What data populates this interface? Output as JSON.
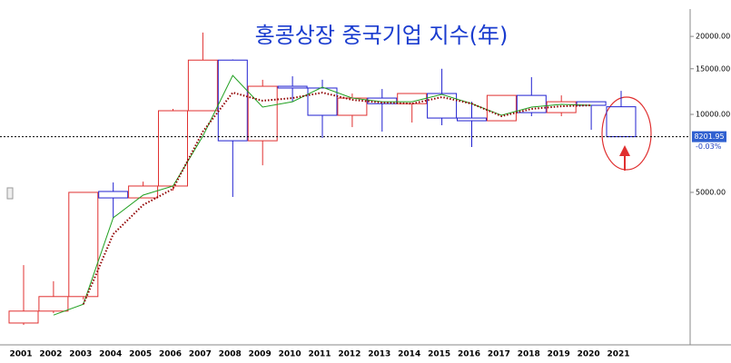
{
  "chart_data": {
    "type": "candlestick",
    "title": "홍콩상장 중국기업 지수(年)",
    "categories": [
      "2001",
      "2002",
      "2003",
      "2004",
      "2005",
      "2006",
      "2007",
      "2008",
      "2009",
      "2010",
      "2011",
      "2012",
      "2013",
      "2014",
      "2015",
      "2016",
      "2017",
      "2018",
      "2019",
      "2020",
      "2021"
    ],
    "open": [
      1565,
      1740,
      1980,
      5040,
      4760,
      5290,
      10330,
      16200,
      7910,
      12840,
      12640,
      9920,
      11560,
      11000,
      12040,
      9680,
      9450,
      11840,
      10160,
      11190,
      10700
    ],
    "high": [
      2620,
      2270,
      5000,
      5460,
      5500,
      10500,
      20700,
      16300,
      13600,
      14030,
      13600,
      12040,
      12530,
      12040,
      15000,
      11190,
      11840,
      13920,
      11840,
      11190,
      12330
    ],
    "low": [
      1540,
      1710,
      1930,
      3990,
      4760,
      5080,
      10330,
      4800,
      6360,
      11190,
      8110,
      8930,
      8580,
      9300,
      9080,
      7480,
      9450,
      9840,
      9840,
      8720,
      8201.95
    ],
    "close": [
      1740,
      1980,
      5000,
      4760,
      5290,
      10330,
      16200,
      7910,
      12840,
      12640,
      9920,
      11560,
      11000,
      12040,
      9680,
      9450,
      11840,
      10160,
      11190,
      10840,
      8201.95
    ],
    "up_color": "#e03030",
    "down_color": "#2020d0",
    "lines": [
      {
        "color": "#20a020",
        "style": "solid",
        "values": [
          null,
          1680,
          1850,
          3990,
          4880,
          5290,
          8240,
          14140,
          10670,
          11190,
          12740,
          11560,
          11190,
          11190,
          11940,
          11000,
          9920,
          10670,
          10930,
          10840,
          null
        ]
      },
      {
        "color": "#900000",
        "style": "dotted",
        "values": [
          null,
          null,
          1850,
          3450,
          4470,
          5160,
          8580,
          12140,
          11290,
          11560,
          12140,
          11380,
          11100,
          11000,
          11660,
          11000,
          9840,
          10500,
          10750,
          10840,
          null
        ]
      }
    ],
    "last_price": 8201.95,
    "last_change": "-0.03%",
    "log_scale": true,
    "ylim": [
      1310,
      25500
    ],
    "yticks": [
      {
        "value": 5000,
        "label": "5000.00"
      },
      {
        "value": 10000,
        "label": "10000.00"
      },
      {
        "value": 15000,
        "label": "15000.00"
      },
      {
        "value": 20000,
        "label": "20000.00"
      }
    ]
  }
}
